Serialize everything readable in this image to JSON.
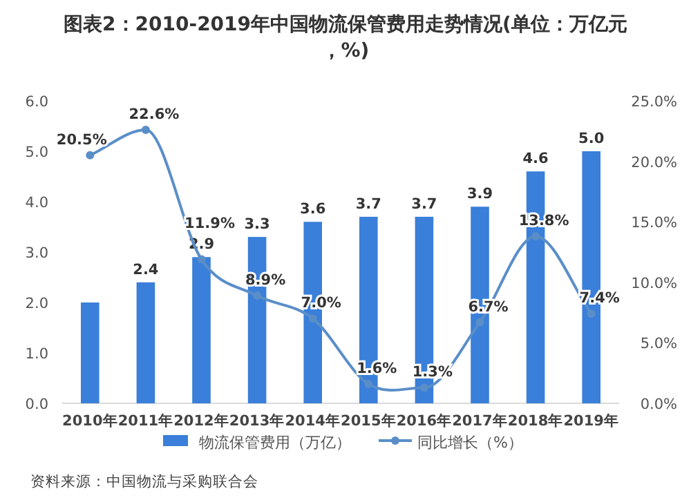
{
  "chart_data": {
    "type": "bar",
    "title": "图表2：2010-2019年中国物流保管费用走势情况(单位：万亿元，%)",
    "categories": [
      "2010年",
      "2011年",
      "2012年",
      "2013年",
      "2014年",
      "2015年",
      "2016年",
      "2017年",
      "2018年",
      "2019年"
    ],
    "series": [
      {
        "name": "物流保管费用（万亿）",
        "color": "#3a7fd9",
        "values": [
          2.0,
          2.4,
          2.9,
          3.3,
          3.6,
          3.7,
          3.7,
          3.9,
          4.6,
          5.0
        ],
        "value_labels": [
          null,
          "2.4",
          "2.9",
          "3.3",
          "3.6",
          "3.7",
          "3.7",
          "3.9",
          "4.6",
          "5.0"
        ]
      },
      {
        "name": "同比增长（%）",
        "type": "line",
        "axis": "y2",
        "color": "#5a8ec8",
        "marker": "circle",
        "values": [
          20.5,
          22.6,
          11.9,
          8.9,
          7.0,
          1.6,
          1.3,
          6.7,
          13.8,
          7.4
        ],
        "value_labels": [
          "20.5%",
          "22.6%",
          "11.9%",
          "8.9%",
          "7.0%",
          "1.6%",
          "1.3%",
          "6.7%",
          "13.8%",
          "7.4%"
        ]
      }
    ],
    "ylim": [
      0,
      6
    ],
    "yticks": [
      {
        "value": 0,
        "label": "0.0"
      },
      {
        "value": 1,
        "label": "1.0"
      },
      {
        "value": 2,
        "label": "2.0"
      },
      {
        "value": 3,
        "label": "3.0"
      },
      {
        "value": 4,
        "label": "4.0"
      },
      {
        "value": 5,
        "label": "5.0"
      },
      {
        "value": 6,
        "label": "6.0"
      }
    ],
    "y2lim": [
      0,
      25
    ],
    "y2ticks": [
      {
        "value": 0,
        "label": "0.0%"
      },
      {
        "value": 5,
        "label": "5.0%"
      },
      {
        "value": 10,
        "label": "10.0%"
      },
      {
        "value": 15,
        "label": "15.0%"
      },
      {
        "value": 20,
        "label": "20.0%"
      },
      {
        "value": 25,
        "label": "25.0%"
      }
    ],
    "legend": "bottom",
    "annotations": [
      "资料来源：中国物流与采购联合会"
    ]
  }
}
